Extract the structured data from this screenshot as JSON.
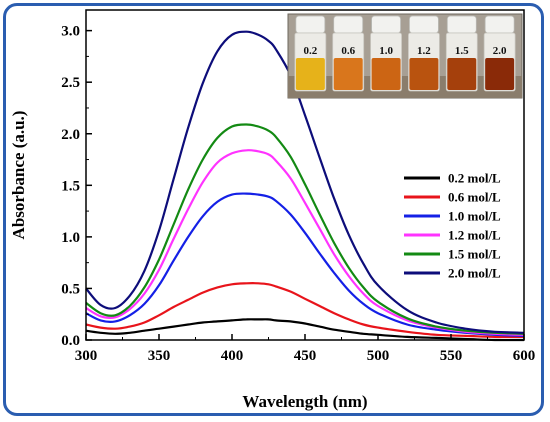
{
  "chart_data": {
    "type": "line",
    "xlabel": "Wavelength (nm)",
    "ylabel": "Absorbance (a.u.)",
    "xlim": [
      300,
      600
    ],
    "ylim": [
      0,
      3.2
    ],
    "x_ticks": [
      "300",
      "350",
      "400",
      "450",
      "500",
      "550",
      "600"
    ],
    "y_ticks": [
      "0.0",
      "0.5",
      "1.0",
      "1.5",
      "2.0",
      "2.5",
      "3.0"
    ],
    "grid": false,
    "legend_position": "right",
    "x": [
      300,
      310,
      320,
      330,
      340,
      350,
      360,
      370,
      380,
      390,
      400,
      410,
      418,
      425,
      430,
      440,
      450,
      460,
      470,
      480,
      490,
      500,
      520,
      540,
      560,
      580,
      600
    ],
    "series": [
      {
        "name": "0.2 mol/L",
        "color": "#000000",
        "values": [
          0.09,
          0.07,
          0.06,
          0.07,
          0.09,
          0.11,
          0.13,
          0.15,
          0.17,
          0.18,
          0.19,
          0.2,
          0.2,
          0.2,
          0.19,
          0.18,
          0.16,
          0.13,
          0.1,
          0.08,
          0.06,
          0.05,
          0.03,
          0.02,
          0.01,
          0.0,
          0.0
        ]
      },
      {
        "name": "0.6 mol/L",
        "color": "#e8141b",
        "values": [
          0.15,
          0.12,
          0.11,
          0.13,
          0.17,
          0.24,
          0.32,
          0.39,
          0.46,
          0.51,
          0.54,
          0.55,
          0.55,
          0.54,
          0.52,
          0.47,
          0.4,
          0.33,
          0.26,
          0.2,
          0.15,
          0.12,
          0.08,
          0.05,
          0.04,
          0.03,
          0.03
        ]
      },
      {
        "name": "1.0 mol/L",
        "color": "#1420e6",
        "values": [
          0.26,
          0.19,
          0.18,
          0.24,
          0.35,
          0.53,
          0.77,
          1.0,
          1.2,
          1.34,
          1.41,
          1.42,
          1.41,
          1.39,
          1.35,
          1.22,
          1.04,
          0.84,
          0.65,
          0.48,
          0.35,
          0.26,
          0.15,
          0.1,
          0.07,
          0.05,
          0.04
        ]
      },
      {
        "name": "1.2 mol/L",
        "color": "#ff33ff",
        "values": [
          0.31,
          0.23,
          0.22,
          0.3,
          0.45,
          0.68,
          0.98,
          1.27,
          1.53,
          1.72,
          1.81,
          1.84,
          1.83,
          1.8,
          1.74,
          1.57,
          1.33,
          1.08,
          0.83,
          0.62,
          0.45,
          0.33,
          0.19,
          0.12,
          0.08,
          0.06,
          0.05
        ]
      },
      {
        "name": "1.5 mol/L",
        "color": "#138a13",
        "values": [
          0.36,
          0.26,
          0.24,
          0.33,
          0.51,
          0.78,
          1.12,
          1.46,
          1.75,
          1.96,
          2.07,
          2.09,
          2.07,
          2.03,
          1.97,
          1.78,
          1.51,
          1.22,
          0.94,
          0.7,
          0.51,
          0.37,
          0.21,
          0.13,
          0.09,
          0.07,
          0.06
        ]
      },
      {
        "name": "2.0 mol/L",
        "color": "#0d0d7a",
        "values": [
          0.5,
          0.34,
          0.31,
          0.43,
          0.67,
          1.06,
          1.56,
          2.06,
          2.49,
          2.8,
          2.96,
          2.99,
          2.96,
          2.9,
          2.82,
          2.57,
          2.18,
          1.77,
          1.37,
          1.02,
          0.74,
          0.53,
          0.29,
          0.17,
          0.11,
          0.08,
          0.07
        ]
      }
    ]
  },
  "inset": {
    "vial_labels": [
      "0.2",
      "0.6",
      "1.0",
      "1.2",
      "1.5",
      "2.0"
    ],
    "liquid_colors": [
      "#e6b21a",
      "#d9761c",
      "#cc6514",
      "#b9530f",
      "#a5400c",
      "#8a2a08"
    ]
  }
}
